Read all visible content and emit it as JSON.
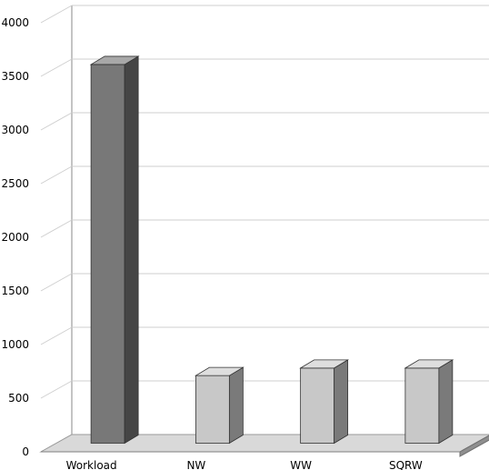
{
  "chart_data": {
    "type": "bar",
    "style": "3d",
    "title": "",
    "xlabel": "",
    "ylabel": "",
    "categories": [
      "Workload",
      "NW",
      "WW",
      "SQRW"
    ],
    "series": [
      {
        "values": [
          3530,
          630,
          700,
          700
        ]
      }
    ],
    "ylim": [
      0,
      4000
    ],
    "yticks": [
      "0",
      "500",
      "1000",
      "1500",
      "2000",
      "2500",
      "3000",
      "3500",
      "4000"
    ],
    "grid": true,
    "legend": "none",
    "colors": {
      "highlight_front": "#787878",
      "highlight_top": "#a8a8a8",
      "highlight_side": "#454545",
      "bar_front": "#c8c8c8",
      "bar_top": "#dedede",
      "bar_side": "#7a7a7a",
      "floor": "#d9d9d9",
      "grid": "#cfcfcf",
      "axis": "#888888"
    }
  }
}
